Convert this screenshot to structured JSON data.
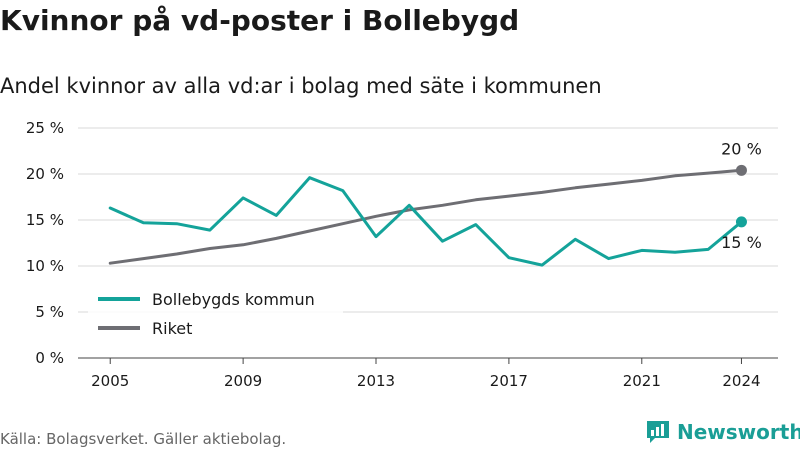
{
  "header": {
    "title": "Kvinnor på vd-poster i Bollebygd",
    "subtitle": "Andel kvinnor av alla vd:ar i bolag med säte i kommunen"
  },
  "footer": {
    "source": "Källa: Bolagsverket. Gäller aktiebolag.",
    "brand": "Newsworthy"
  },
  "colors": {
    "bollebygd": "#14a39a",
    "riket": "#6e6e73",
    "grid": "#d9d9d9",
    "brand": "#1a9e96"
  },
  "chart_data": {
    "type": "line",
    "x": [
      2005,
      2006,
      2007,
      2008,
      2009,
      2010,
      2011,
      2012,
      2013,
      2014,
      2015,
      2016,
      2017,
      2018,
      2019,
      2020,
      2021,
      2022,
      2023,
      2024
    ],
    "x_ticks": [
      2005,
      2009,
      2013,
      2017,
      2021,
      2024
    ],
    "y_ticks": [
      0,
      5,
      10,
      15,
      20,
      25
    ],
    "y_tick_labels": [
      "0 %",
      "5 %",
      "10 %",
      "15 %",
      "20 %",
      "25 %"
    ],
    "xlim": [
      2005,
      2024
    ],
    "ylim": [
      0,
      25
    ],
    "grid": true,
    "legend_position": "bottom-left",
    "series": [
      {
        "name": "Bollebygds kommun",
        "values": [
          16.3,
          14.7,
          14.6,
          13.9,
          17.4,
          15.5,
          19.6,
          18.2,
          13.2,
          16.6,
          12.7,
          14.5,
          10.9,
          10.1,
          12.9,
          10.8,
          11.7,
          11.5,
          11.8,
          14.8
        ],
        "end_label": "15 %"
      },
      {
        "name": "Riket",
        "values": [
          10.3,
          10.8,
          11.3,
          11.9,
          12.3,
          13.0,
          13.8,
          14.6,
          15.4,
          16.1,
          16.6,
          17.2,
          17.6,
          18.0,
          18.5,
          18.9,
          19.3,
          19.8,
          20.1,
          20.4
        ],
        "end_label": "20 %"
      }
    ]
  }
}
